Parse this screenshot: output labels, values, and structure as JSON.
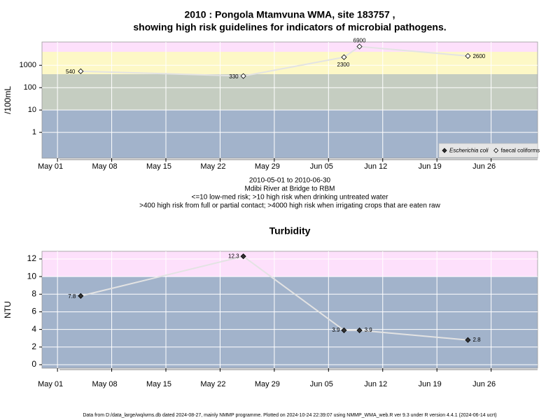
{
  "chart_data": [
    {
      "type": "line",
      "log_y": true,
      "title": [
        "2010 : Pongola Mtamvuna WMA, site 183757 ,",
        "showing high risk guidelines for indicators of microbial pathogens."
      ],
      "ylabel": "/100mL",
      "x": [
        "2010-05-04",
        "2010-05-25",
        "2010-06-07",
        "2010-06-09",
        "2010-06-23"
      ],
      "series": [
        {
          "name": "Escherichia coli",
          "color": "#333333",
          "marker": "filled-diamond",
          "values": [
            null,
            null,
            null,
            null,
            null
          ]
        },
        {
          "name": "faecal coliforms",
          "color": "#000000",
          "marker": "open-diamond",
          "values": [
            540,
            330,
            2300,
            6900,
            2600
          ]
        }
      ],
      "xlim": [
        "2010-04-29",
        "2010-07-02"
      ],
      "xticks": [
        {
          "value": "2010-05-01",
          "label": "May 01"
        },
        {
          "value": "2010-05-08",
          "label": "May 08"
        },
        {
          "value": "2010-05-15",
          "label": "May 15"
        },
        {
          "value": "2010-05-22",
          "label": "May 22"
        },
        {
          "value": "2010-05-29",
          "label": "May 29"
        },
        {
          "value": "2010-06-05",
          "label": "Jun 05"
        },
        {
          "value": "2010-06-12",
          "label": "Jun 12"
        },
        {
          "value": "2010-06-19",
          "label": "Jun 19"
        },
        {
          "value": "2010-06-26",
          "label": "Jun 26"
        }
      ],
      "ylim": [
        0.07,
        11000
      ],
      "yticks": [
        1,
        10,
        100,
        1000
      ],
      "bands": [
        {
          "to": 10,
          "color": "#a2b3cb"
        },
        {
          "from": 10,
          "to": 400,
          "color": "#c5cdc1"
        },
        {
          "from": 400,
          "to": 4000,
          "color": "#fdf8c6"
        },
        {
          "from": 4000,
          "color": "#fde0fb"
        }
      ],
      "grid": true,
      "legend": "bottom-right",
      "notes": [
        "2010-05-01 to 2010-06-30",
        "Mdibi River at Bridge to RBM",
        "<=10 low-med risk; >10 high risk when drinking untreated water",
        ">400 high risk from full or partial contact; >4000 high risk when irrigating crops that are eaten raw"
      ]
    },
    {
      "type": "line",
      "log_y": false,
      "title": [
        "Turbidity"
      ],
      "ylabel": "NTU",
      "x": [
        "2010-05-04",
        "2010-05-25",
        "2010-06-07",
        "2010-06-09",
        "2010-06-23"
      ],
      "series": [
        {
          "name": "Turbidity",
          "color": "#333333",
          "marker": "filled-diamond",
          "values": [
            7.8,
            12.3,
            3.9,
            3.9,
            2.8
          ]
        }
      ],
      "xlim": [
        "2010-04-29",
        "2010-07-02"
      ],
      "xticks": [
        {
          "value": "2010-05-01",
          "label": "May 01"
        },
        {
          "value": "2010-05-08",
          "label": "May 08"
        },
        {
          "value": "2010-05-15",
          "label": "May 15"
        },
        {
          "value": "2010-05-22",
          "label": "May 22"
        },
        {
          "value": "2010-05-29",
          "label": "May 29"
        },
        {
          "value": "2010-06-05",
          "label": "Jun 05"
        },
        {
          "value": "2010-06-12",
          "label": "Jun 12"
        },
        {
          "value": "2010-06-19",
          "label": "Jun 19"
        },
        {
          "value": "2010-06-26",
          "label": "Jun 26"
        }
      ],
      "ylim": [
        -0.4,
        12.87
      ],
      "yticks": [
        0,
        2,
        4,
        6,
        8,
        10,
        12
      ],
      "bands": [
        {
          "to": 10,
          "color": "#a2b3cb"
        },
        {
          "from": 10,
          "color": "#fde0fb"
        }
      ],
      "grid": true
    }
  ],
  "footer": "Data from D:/data_large/wq/wms.db dated 2024-08-27, mainly NMMP programme. Plotted on 2024-10-24 22:39:07 using NMMP_WMA_web.R ver 9.3 under R version 4.4.1 (2024-06-14 ucrt)"
}
